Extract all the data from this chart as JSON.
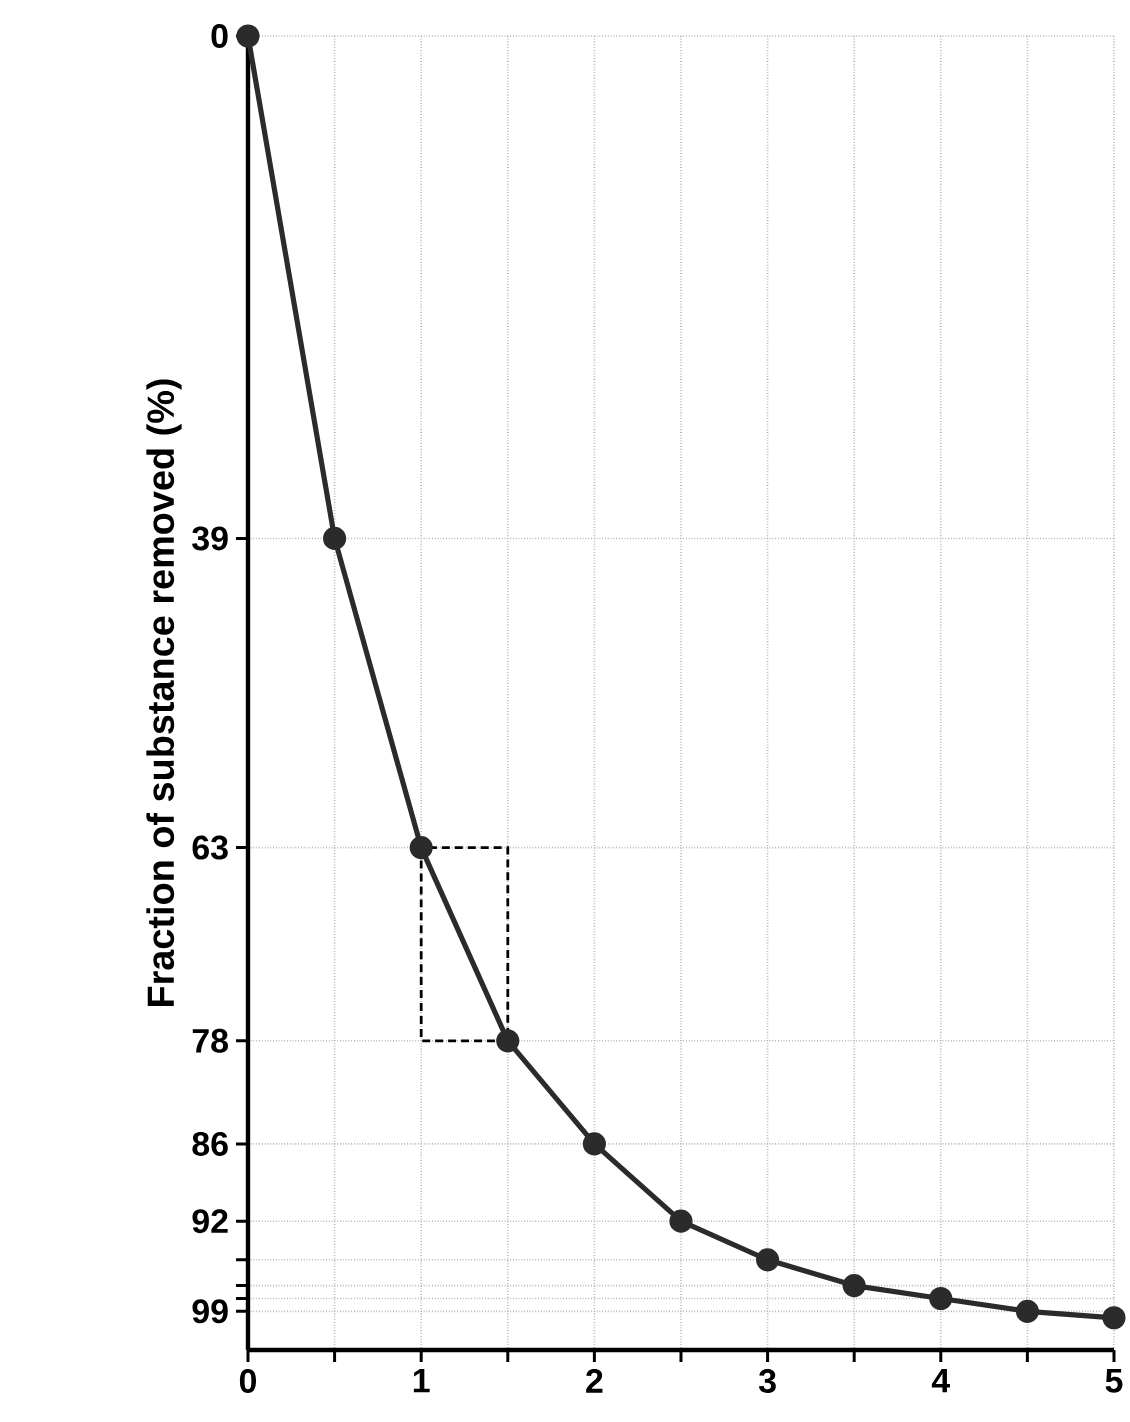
{
  "chart_data": {
    "type": "line",
    "ylabel": "Fraction of substance removed (%)",
    "x": [
      0,
      0.5,
      1,
      1.5,
      2,
      2.5,
      3,
      3.5,
      4,
      4.5,
      5
    ],
    "series": [
      {
        "color": "#2b2b2b",
        "values": [
          0,
          39,
          63,
          78,
          86,
          92,
          95,
          97,
          98,
          99,
          99.5
        ]
      }
    ],
    "xlim": [
      0,
      5
    ],
    "xticks": [
      0,
      {
        "value": 0.5,
        "label": null
      },
      1,
      {
        "value": 1.5,
        "label": null
      },
      2,
      {
        "value": 2.5,
        "label": null
      },
      3,
      {
        "value": 3.5,
        "label": null
      },
      4,
      {
        "value": 4.5,
        "label": null
      },
      5
    ],
    "ylim": [
      102,
      0
    ],
    "yticks": [
      0,
      39,
      63,
      78,
      86,
      92,
      {
        "value": 95,
        "label": null
      },
      {
        "value": 97,
        "label": null
      },
      {
        "value": 98,
        "label": null
      },
      99
    ],
    "grid": true,
    "marker": "circle",
    "line_style": "solid"
  }
}
